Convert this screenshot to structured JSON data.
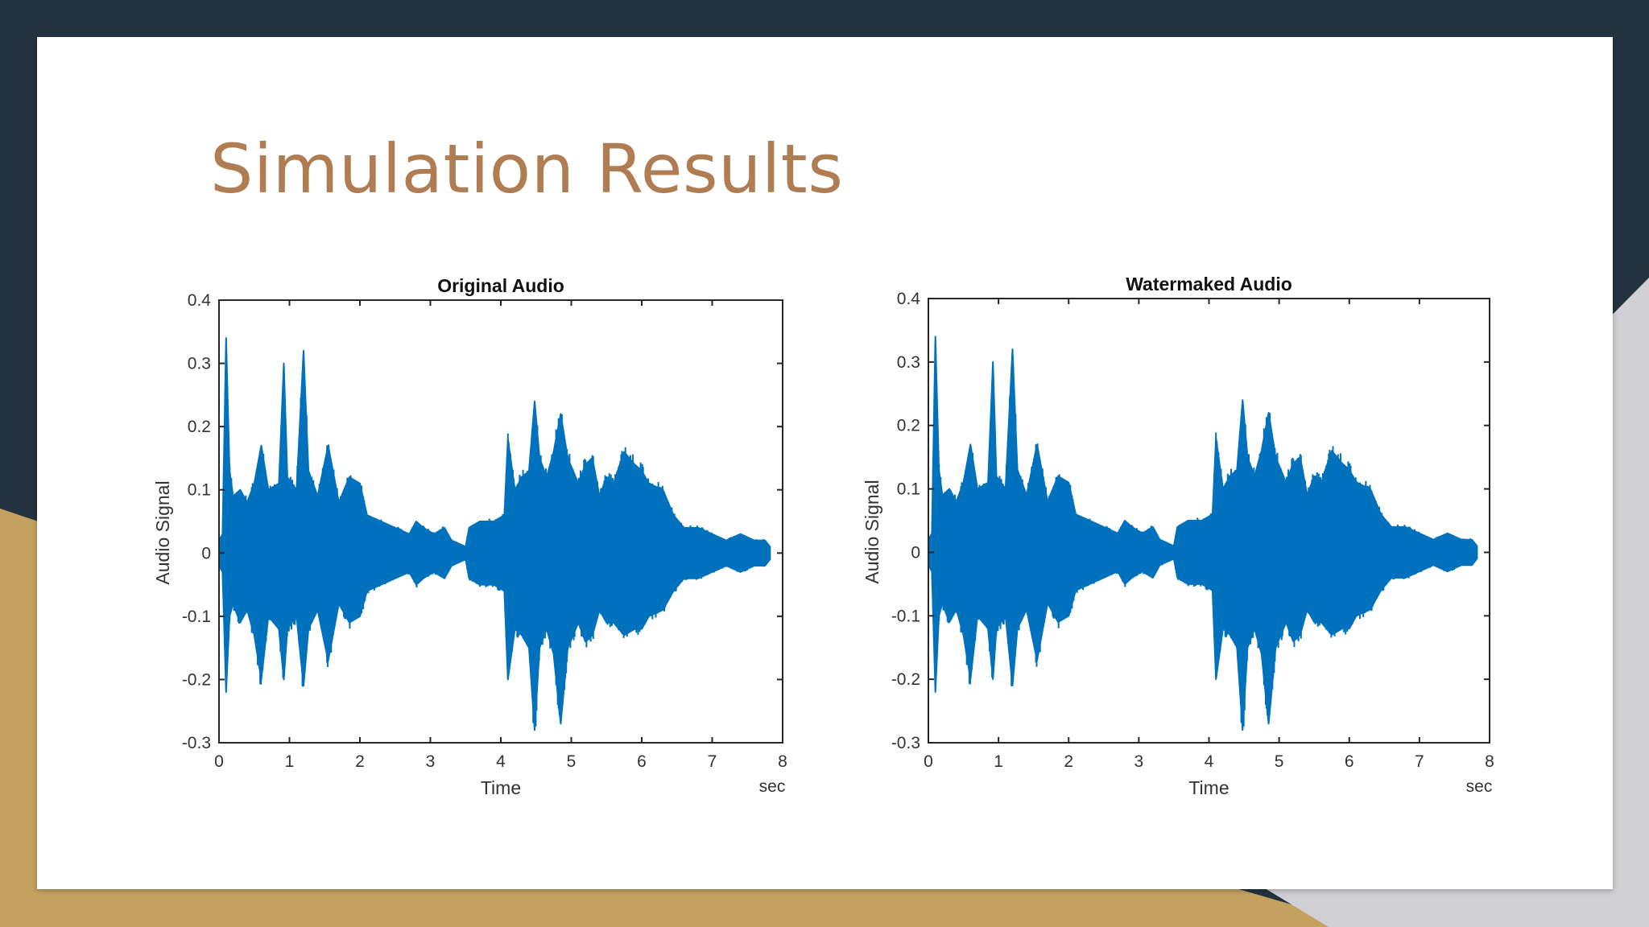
{
  "slide": {
    "title": "Simulation Results"
  },
  "colors": {
    "background_dark": "#22323f",
    "accent_gold": "#c4a15f",
    "accent_gray": "#cfcfd4",
    "title_color": "#b07c52",
    "waveform": "#0072bd"
  },
  "chart_data": [
    {
      "type": "line",
      "title": "Original Audio",
      "xlabel": "Time",
      "xunit": "sec",
      "ylabel": "Audio Signal",
      "xlim": [
        0,
        8
      ],
      "ylim": [
        -0.3,
        0.4
      ],
      "xticks": [
        "0",
        "1",
        "2",
        "3",
        "4",
        "5",
        "6",
        "7",
        "8"
      ],
      "yticks": [
        "0.4",
        "0.3",
        "0.2",
        "0.1",
        "0",
        "-0.1",
        "-0.2",
        "-0.3"
      ],
      "grid": false,
      "series": [
        {
          "envelope_top": [
            [
              0,
              0.02
            ],
            [
              0.05,
              0.03
            ],
            [
              0.1,
              0.34
            ],
            [
              0.15,
              0.13
            ],
            [
              0.2,
              0.09
            ],
            [
              0.3,
              0.1
            ],
            [
              0.4,
              0.08
            ],
            [
              0.5,
              0.11
            ],
            [
              0.6,
              0.17
            ],
            [
              0.7,
              0.1
            ],
            [
              0.85,
              0.11
            ],
            [
              0.92,
              0.3
            ],
            [
              0.97,
              0.12
            ],
            [
              1.1,
              0.1
            ],
            [
              1.2,
              0.32
            ],
            [
              1.27,
              0.13
            ],
            [
              1.4,
              0.09
            ],
            [
              1.55,
              0.17
            ],
            [
              1.7,
              0.08
            ],
            [
              1.85,
              0.12
            ],
            [
              2.0,
              0.11
            ],
            [
              2.1,
              0.06
            ],
            [
              2.3,
              0.05
            ],
            [
              2.5,
              0.04
            ],
            [
              2.7,
              0.03
            ],
            [
              2.8,
              0.05
            ],
            [
              2.9,
              0.04
            ],
            [
              3.05,
              0.03
            ],
            [
              3.2,
              0.04
            ],
            [
              3.3,
              0.02
            ],
            [
              3.5,
              0.01
            ],
            [
              3.55,
              0.04
            ],
            [
              3.7,
              0.05
            ],
            [
              3.9,
              0.05
            ],
            [
              4.05,
              0.06
            ],
            [
              4.1,
              0.18
            ],
            [
              4.2,
              0.1
            ],
            [
              4.3,
              0.12
            ],
            [
              4.4,
              0.13
            ],
            [
              4.48,
              0.24
            ],
            [
              4.55,
              0.15
            ],
            [
              4.65,
              0.12
            ],
            [
              4.75,
              0.16
            ],
            [
              4.85,
              0.22
            ],
            [
              4.95,
              0.15
            ],
            [
              5.1,
              0.11
            ],
            [
              5.2,
              0.14
            ],
            [
              5.3,
              0.15
            ],
            [
              5.4,
              0.09
            ],
            [
              5.5,
              0.12
            ],
            [
              5.6,
              0.11
            ],
            [
              5.75,
              0.16
            ],
            [
              5.9,
              0.14
            ],
            [
              6.0,
              0.13
            ],
            [
              6.1,
              0.11
            ],
            [
              6.3,
              0.1
            ],
            [
              6.45,
              0.06
            ],
            [
              6.6,
              0.04
            ],
            [
              6.8,
              0.04
            ],
            [
              7.0,
              0.03
            ],
            [
              7.2,
              0.02
            ],
            [
              7.4,
              0.03
            ],
            [
              7.6,
              0.02
            ],
            [
              7.75,
              0.02
            ],
            [
              7.82,
              0.01
            ]
          ],
          "envelope_bottom": [
            [
              0,
              -0.02
            ],
            [
              0.05,
              -0.03
            ],
            [
              0.1,
              -0.22
            ],
            [
              0.15,
              -0.1
            ],
            [
              0.2,
              -0.08
            ],
            [
              0.3,
              -0.11
            ],
            [
              0.4,
              -0.09
            ],
            [
              0.5,
              -0.13
            ],
            [
              0.6,
              -0.2
            ],
            [
              0.7,
              -0.1
            ],
            [
              0.85,
              -0.12
            ],
            [
              0.92,
              -0.2
            ],
            [
              0.97,
              -0.12
            ],
            [
              1.1,
              -0.1
            ],
            [
              1.2,
              -0.21
            ],
            [
              1.27,
              -0.12
            ],
            [
              1.4,
              -0.09
            ],
            [
              1.55,
              -0.17
            ],
            [
              1.7,
              -0.08
            ],
            [
              1.85,
              -0.11
            ],
            [
              2.0,
              -0.1
            ],
            [
              2.1,
              -0.06
            ],
            [
              2.3,
              -0.05
            ],
            [
              2.5,
              -0.04
            ],
            [
              2.7,
              -0.03
            ],
            [
              2.8,
              -0.05
            ],
            [
              2.9,
              -0.04
            ],
            [
              3.05,
              -0.03
            ],
            [
              3.2,
              -0.04
            ],
            [
              3.3,
              -0.02
            ],
            [
              3.5,
              -0.01
            ],
            [
              3.55,
              -0.04
            ],
            [
              3.7,
              -0.05
            ],
            [
              3.9,
              -0.05
            ],
            [
              4.05,
              -0.06
            ],
            [
              4.1,
              -0.2
            ],
            [
              4.2,
              -0.12
            ],
            [
              4.3,
              -0.13
            ],
            [
              4.4,
              -0.15
            ],
            [
              4.48,
              -0.28
            ],
            [
              4.55,
              -0.15
            ],
            [
              4.65,
              -0.12
            ],
            [
              4.75,
              -0.16
            ],
            [
              4.85,
              -0.27
            ],
            [
              4.95,
              -0.15
            ],
            [
              5.1,
              -0.11
            ],
            [
              5.2,
              -0.14
            ],
            [
              5.3,
              -0.13
            ],
            [
              5.4,
              -0.09
            ],
            [
              5.5,
              -0.11
            ],
            [
              5.6,
              -0.11
            ],
            [
              5.75,
              -0.13
            ],
            [
              5.9,
              -0.12
            ],
            [
              6.0,
              -0.12
            ],
            [
              6.1,
              -0.1
            ],
            [
              6.3,
              -0.09
            ],
            [
              6.45,
              -0.06
            ],
            [
              6.6,
              -0.04
            ],
            [
              6.8,
              -0.04
            ],
            [
              7.0,
              -0.03
            ],
            [
              7.2,
              -0.02
            ],
            [
              7.4,
              -0.03
            ],
            [
              7.6,
              -0.02
            ],
            [
              7.75,
              -0.02
            ],
            [
              7.82,
              -0.01
            ]
          ]
        }
      ]
    },
    {
      "type": "line",
      "title": "Watermaked Audio",
      "xlabel": "Time",
      "xunit": "sec",
      "ylabel": "Audio Signal",
      "xlim": [
        0,
        8
      ],
      "ylim": [
        -0.3,
        0.4
      ],
      "xticks": [
        "0",
        "1",
        "2",
        "3",
        "4",
        "5",
        "6",
        "7",
        "8"
      ],
      "yticks": [
        "0.4",
        "0.3",
        "0.2",
        "0.1",
        "0",
        "-0.1",
        "-0.2",
        "-0.3"
      ],
      "grid": false,
      "series": [
        {
          "envelope_top": [
            [
              0,
              0.02
            ],
            [
              0.05,
              0.03
            ],
            [
              0.1,
              0.34
            ],
            [
              0.15,
              0.13
            ],
            [
              0.2,
              0.09
            ],
            [
              0.3,
              0.1
            ],
            [
              0.4,
              0.08
            ],
            [
              0.5,
              0.11
            ],
            [
              0.6,
              0.17
            ],
            [
              0.7,
              0.1
            ],
            [
              0.85,
              0.11
            ],
            [
              0.92,
              0.3
            ],
            [
              0.97,
              0.12
            ],
            [
              1.1,
              0.1
            ],
            [
              1.2,
              0.32
            ],
            [
              1.27,
              0.13
            ],
            [
              1.4,
              0.09
            ],
            [
              1.55,
              0.17
            ],
            [
              1.7,
              0.08
            ],
            [
              1.85,
              0.12
            ],
            [
              2.0,
              0.11
            ],
            [
              2.1,
              0.06
            ],
            [
              2.3,
              0.05
            ],
            [
              2.5,
              0.04
            ],
            [
              2.7,
              0.03
            ],
            [
              2.8,
              0.05
            ],
            [
              2.9,
              0.04
            ],
            [
              3.05,
              0.03
            ],
            [
              3.2,
              0.04
            ],
            [
              3.3,
              0.02
            ],
            [
              3.5,
              0.01
            ],
            [
              3.55,
              0.04
            ],
            [
              3.7,
              0.05
            ],
            [
              3.9,
              0.05
            ],
            [
              4.05,
              0.06
            ],
            [
              4.1,
              0.18
            ],
            [
              4.2,
              0.1
            ],
            [
              4.3,
              0.12
            ],
            [
              4.4,
              0.13
            ],
            [
              4.48,
              0.24
            ],
            [
              4.55,
              0.15
            ],
            [
              4.65,
              0.12
            ],
            [
              4.75,
              0.16
            ],
            [
              4.85,
              0.22
            ],
            [
              4.95,
              0.15
            ],
            [
              5.1,
              0.11
            ],
            [
              5.2,
              0.14
            ],
            [
              5.3,
              0.15
            ],
            [
              5.4,
              0.09
            ],
            [
              5.5,
              0.12
            ],
            [
              5.6,
              0.11
            ],
            [
              5.75,
              0.16
            ],
            [
              5.9,
              0.14
            ],
            [
              6.0,
              0.13
            ],
            [
              6.1,
              0.11
            ],
            [
              6.3,
              0.1
            ],
            [
              6.45,
              0.06
            ],
            [
              6.6,
              0.04
            ],
            [
              6.8,
              0.04
            ],
            [
              7.0,
              0.03
            ],
            [
              7.2,
              0.02
            ],
            [
              7.4,
              0.03
            ],
            [
              7.6,
              0.02
            ],
            [
              7.75,
              0.02
            ],
            [
              7.82,
              0.01
            ]
          ],
          "envelope_bottom": [
            [
              0,
              -0.02
            ],
            [
              0.05,
              -0.03
            ],
            [
              0.1,
              -0.22
            ],
            [
              0.15,
              -0.1
            ],
            [
              0.2,
              -0.08
            ],
            [
              0.3,
              -0.11
            ],
            [
              0.4,
              -0.09
            ],
            [
              0.5,
              -0.13
            ],
            [
              0.6,
              -0.2
            ],
            [
              0.7,
              -0.1
            ],
            [
              0.85,
              -0.12
            ],
            [
              0.92,
              -0.2
            ],
            [
              0.97,
              -0.12
            ],
            [
              1.1,
              -0.1
            ],
            [
              1.2,
              -0.21
            ],
            [
              1.27,
              -0.12
            ],
            [
              1.4,
              -0.09
            ],
            [
              1.55,
              -0.17
            ],
            [
              1.7,
              -0.08
            ],
            [
              1.85,
              -0.11
            ],
            [
              2.0,
              -0.1
            ],
            [
              2.1,
              -0.06
            ],
            [
              2.3,
              -0.05
            ],
            [
              2.5,
              -0.04
            ],
            [
              2.7,
              -0.03
            ],
            [
              2.8,
              -0.05
            ],
            [
              2.9,
              -0.04
            ],
            [
              3.05,
              -0.03
            ],
            [
              3.2,
              -0.04
            ],
            [
              3.3,
              -0.02
            ],
            [
              3.5,
              -0.01
            ],
            [
              3.55,
              -0.04
            ],
            [
              3.7,
              -0.05
            ],
            [
              3.9,
              -0.05
            ],
            [
              4.05,
              -0.06
            ],
            [
              4.1,
              -0.2
            ],
            [
              4.2,
              -0.12
            ],
            [
              4.3,
              -0.13
            ],
            [
              4.4,
              -0.15
            ],
            [
              4.48,
              -0.28
            ],
            [
              4.55,
              -0.15
            ],
            [
              4.65,
              -0.12
            ],
            [
              4.75,
              -0.16
            ],
            [
              4.85,
              -0.27
            ],
            [
              4.95,
              -0.15
            ],
            [
              5.1,
              -0.11
            ],
            [
              5.2,
              -0.14
            ],
            [
              5.3,
              -0.13
            ],
            [
              5.4,
              -0.09
            ],
            [
              5.5,
              -0.11
            ],
            [
              5.6,
              -0.11
            ],
            [
              5.75,
              -0.13
            ],
            [
              5.9,
              -0.12
            ],
            [
              6.0,
              -0.12
            ],
            [
              6.1,
              -0.1
            ],
            [
              6.3,
              -0.09
            ],
            [
              6.45,
              -0.06
            ],
            [
              6.6,
              -0.04
            ],
            [
              6.8,
              -0.04
            ],
            [
              7.0,
              -0.03
            ],
            [
              7.2,
              -0.02
            ],
            [
              7.4,
              -0.03
            ],
            [
              7.6,
              -0.02
            ],
            [
              7.75,
              -0.02
            ],
            [
              7.82,
              -0.01
            ]
          ]
        }
      ]
    }
  ]
}
